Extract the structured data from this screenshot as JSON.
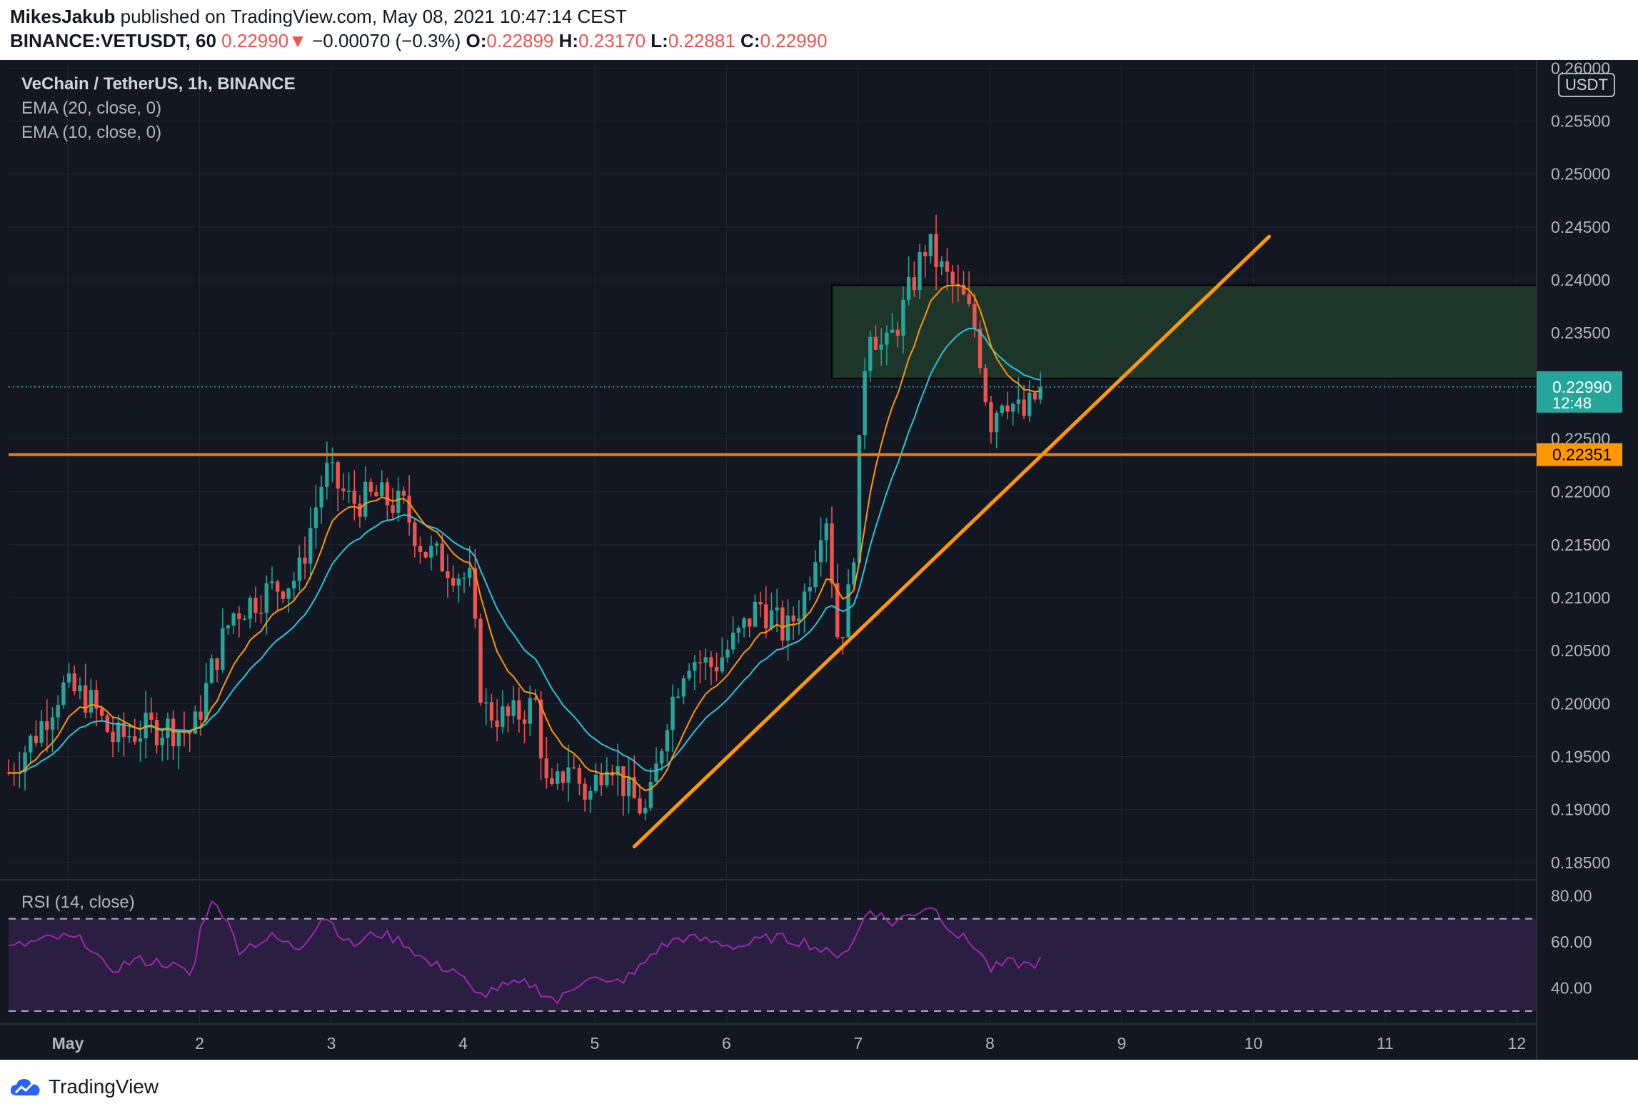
{
  "header": {
    "author": "MikesJakub",
    "published_text": "published on TradingView.com, May 08, 2021 10:47:14 CEST",
    "symbol": "BINANCE:VETUSDT, 60",
    "last_price": "0.22990",
    "change_arrow": "▼",
    "change": "−0.00070 (−0.3%)",
    "o_label": "O:",
    "o_value": "0.22899",
    "h_label": "H:",
    "h_value": "0.23170",
    "l_label": "L:",
    "l_value": "0.22881",
    "c_label": "C:",
    "c_value": "0.22990"
  },
  "legend": {
    "title": "VeChain / TetherUS, 1h, BINANCE",
    "ema20": "EMA (20, close, 0)",
    "ema10": "EMA (10, close, 0)",
    "rsi": "RSI (14, close)"
  },
  "currency": "USDT",
  "footer": {
    "brand": "TradingView"
  },
  "colors": {
    "background": "#131722",
    "up_candle": "#26a69a",
    "down_candle": "#ef5350",
    "ema20": "#26c6da",
    "ema10": "#ff9800",
    "trend_line": "#ff9800",
    "support_line": "#f57c00",
    "zone_fill": "#1f3a2a",
    "rsi_line": "#9c27b0",
    "rsi_band": "#2a1f40",
    "price_label": "#26a69a",
    "support_label": "#ff9800"
  },
  "chart_data": {
    "type": "candlestick",
    "timeframe": "1h",
    "x_axis": {
      "labels": [
        "May",
        "2",
        "3",
        "4",
        "5",
        "6",
        "7",
        "8",
        "9",
        "10",
        "11",
        "12"
      ],
      "range_days": [
        0.55,
        12.15
      ]
    },
    "y_axis": {
      "ticks": [
        "0.26000",
        "0.25500",
        "0.25000",
        "0.24500",
        "0.24000",
        "0.23500",
        "0.23000",
        "0.22500",
        "0.22000",
        "0.21500",
        "0.21000",
        "0.20500",
        "0.20000",
        "0.19500",
        "0.19000",
        "0.18500"
      ],
      "range": [
        0.1835,
        0.2605
      ]
    },
    "price_label": {
      "value": "0.22990",
      "countdown": "12:48",
      "price": 0.2299
    },
    "support_label": {
      "value": "0.22351",
      "price": 0.22351
    },
    "resistance_zone": {
      "price_top": 0.2395,
      "price_bottom": 0.2307,
      "day_start": 6.8
    },
    "trend_line": {
      "from": {
        "day": 5.3,
        "price": 0.1865
      },
      "to": {
        "day": 10.12,
        "price": 0.2441
      }
    },
    "close_path": [
      [
        0.55,
        0.1935
      ],
      [
        0.75,
        0.197
      ],
      [
        0.95,
        0.2015
      ],
      [
        1.15,
        0.2005
      ],
      [
        1.35,
        0.1965
      ],
      [
        1.55,
        0.1975
      ],
      [
        1.75,
        0.1978
      ],
      [
        1.95,
        0.1972
      ],
      [
        2.1,
        0.2035
      ],
      [
        2.25,
        0.2085
      ],
      [
        2.5,
        0.2105
      ],
      [
        2.75,
        0.212
      ],
      [
        2.95,
        0.222
      ],
      [
        3.15,
        0.219
      ],
      [
        3.35,
        0.2195
      ],
      [
        3.55,
        0.2185
      ],
      [
        3.7,
        0.2145
      ],
      [
        3.9,
        0.213
      ],
      [
        4.05,
        0.2115
      ],
      [
        4.15,
        0.1995
      ],
      [
        4.35,
        0.1985
      ],
      [
        4.55,
        0.2
      ],
      [
        4.65,
        0.1905
      ],
      [
        4.8,
        0.1945
      ],
      [
        4.95,
        0.191
      ],
      [
        5.1,
        0.1955
      ],
      [
        5.25,
        0.1915
      ],
      [
        5.4,
        0.1895
      ],
      [
        5.55,
        0.199
      ],
      [
        5.7,
        0.2045
      ],
      [
        5.9,
        0.2035
      ],
      [
        6.1,
        0.2065
      ],
      [
        6.25,
        0.2095
      ],
      [
        6.45,
        0.2065
      ],
      [
        6.6,
        0.2105
      ],
      [
        6.75,
        0.219
      ],
      [
        6.85,
        0.2055
      ],
      [
        6.95,
        0.2115
      ],
      [
        7.07,
        0.2365
      ],
      [
        7.2,
        0.233
      ],
      [
        7.35,
        0.2375
      ],
      [
        7.52,
        0.2435
      ],
      [
        7.65,
        0.2405
      ],
      [
        7.8,
        0.238
      ],
      [
        7.9,
        0.235
      ],
      [
        8.0,
        0.2265
      ],
      [
        8.1,
        0.2295
      ],
      [
        8.25,
        0.227
      ],
      [
        8.4,
        0.2299
      ]
    ],
    "rsi": {
      "ticks": [
        "80.00",
        "60.00",
        "40.00"
      ],
      "band": [
        30,
        70
      ],
      "range": [
        25,
        86
      ],
      "path": [
        [
          0.55,
          57
        ],
        [
          0.75,
          60
        ],
        [
          0.95,
          62
        ],
        [
          1.15,
          60
        ],
        [
          1.3,
          47
        ],
        [
          1.5,
          52
        ],
        [
          1.75,
          51
        ],
        [
          1.95,
          45
        ],
        [
          2.02,
          70
        ],
        [
          2.12,
          79
        ],
        [
          2.3,
          57
        ],
        [
          2.55,
          62
        ],
        [
          2.75,
          57
        ],
        [
          2.95,
          72
        ],
        [
          3.15,
          58
        ],
        [
          3.35,
          64
        ],
        [
          3.55,
          60
        ],
        [
          3.75,
          50
        ],
        [
          3.95,
          48
        ],
        [
          4.1,
          36
        ],
        [
          4.25,
          40
        ],
        [
          4.5,
          42
        ],
        [
          4.72,
          34
        ],
        [
          4.95,
          46
        ],
        [
          5.1,
          41
        ],
        [
          5.3,
          46
        ],
        [
          5.45,
          56
        ],
        [
          5.65,
          62
        ],
        [
          5.9,
          60
        ],
        [
          6.1,
          58
        ],
        [
          6.35,
          62
        ],
        [
          6.6,
          60
        ],
        [
          6.8,
          54
        ],
        [
          6.95,
          58
        ],
        [
          7.08,
          75
        ],
        [
          7.25,
          68
        ],
        [
          7.55,
          76
        ],
        [
          7.75,
          63
        ],
        [
          7.9,
          58
        ],
        [
          8.0,
          48
        ],
        [
          8.15,
          51
        ],
        [
          8.3,
          50
        ],
        [
          8.4,
          52
        ]
      ]
    },
    "series": [
      {
        "name": "EMA (20, close, 0)",
        "span": 20
      },
      {
        "name": "EMA (10, close, 0)",
        "span": 10
      }
    ],
    "grid": true
  }
}
